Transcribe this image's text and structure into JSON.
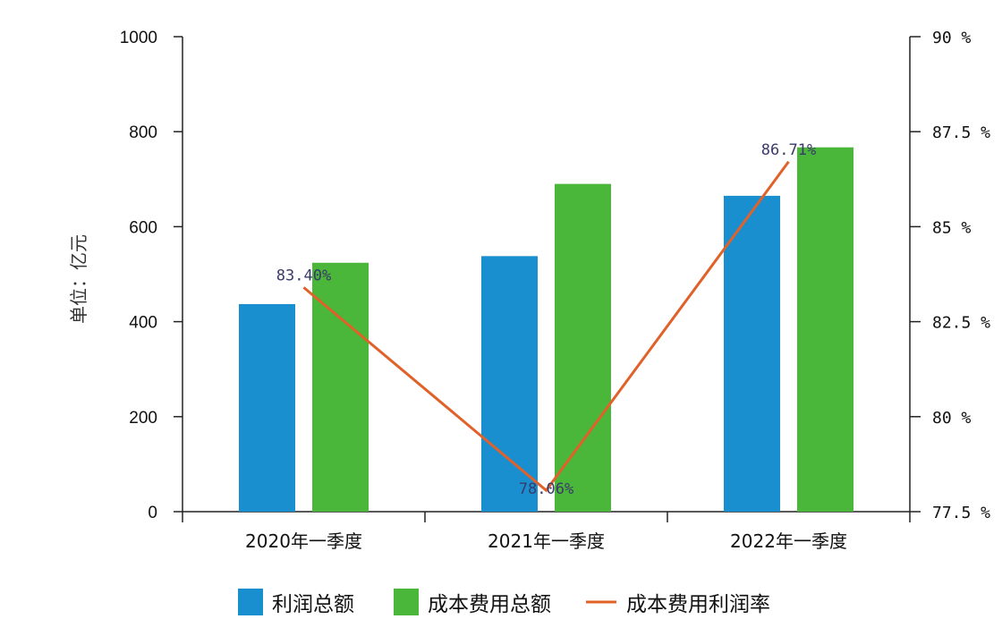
{
  "chart_data": {
    "type": "bar",
    "categories": [
      "2020年一季度",
      "2021年一季度",
      "2022年一季度"
    ],
    "ylabel": "单位：亿元",
    "ylim": [
      0,
      1000
    ],
    "yticks": [
      "0",
      "200",
      "400",
      "600",
      "800",
      "1000"
    ],
    "y2lim": [
      77.5,
      90
    ],
    "y2ticks": [
      "77.5 %",
      "80 %",
      "82.5 %",
      "85 %",
      "87.5 %",
      "90 %"
    ],
    "series": [
      {
        "name": "利润总额",
        "kind": "bar",
        "axis": "left",
        "color": "#1a8fd0",
        "values": [
          437,
          538,
          665
        ]
      },
      {
        "name": "成本费用总额",
        "kind": "bar",
        "axis": "left",
        "color": "#4ab63a",
        "values": [
          524,
          690,
          767
        ]
      },
      {
        "name": "成本费用利润率",
        "kind": "line",
        "axis": "right",
        "color": "#e0622a",
        "values": [
          83.4,
          78.06,
          86.71
        ],
        "labels": [
          "83.40%",
          "78.06%",
          "86.71%"
        ]
      }
    ],
    "legend_position": "bottom",
    "grid": false
  }
}
